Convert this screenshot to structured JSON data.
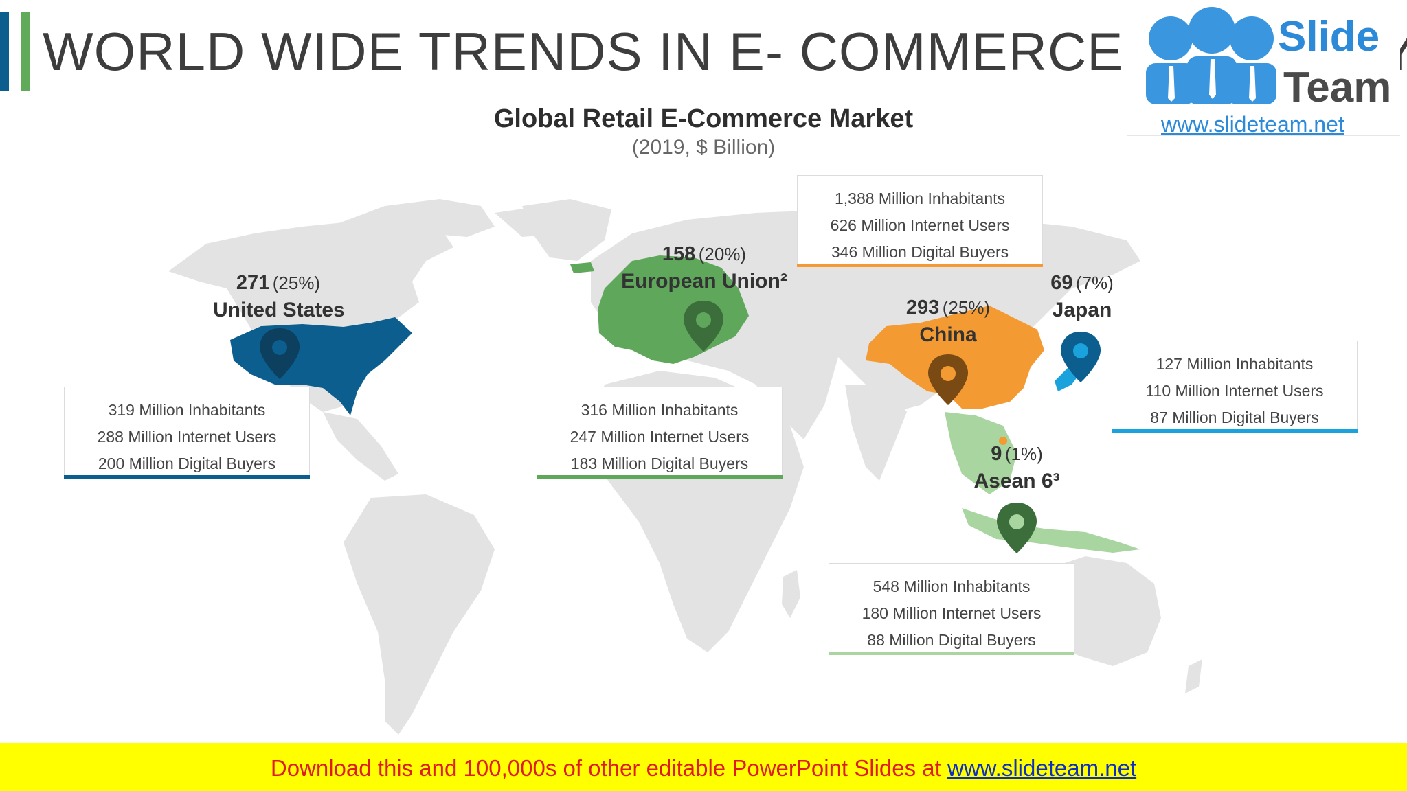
{
  "title": "WORLD WIDE TRENDS IN E- COMMERCE INDUSTRY",
  "logo": {
    "brand_line1": "Slide",
    "brand_line2": "Team",
    "url": "www.slideteam.net"
  },
  "chart": {
    "title": "Global Retail E-Commerce Market",
    "subtitle": "(2019, $ Billion)"
  },
  "colors": {
    "accent_blue": "#0b5e8d",
    "accent_green": "#5fab5a",
    "united_states": "#0b5e8d",
    "european_union": "#5fa85b",
    "china": "#f39b32",
    "japan": "#1aa2dc",
    "asean": "#a8d5a0",
    "land": "#e3e3e3",
    "footer_bg": "#ffff00",
    "footer_text": "#e01b1b",
    "footer_link": "#0e2fbf"
  },
  "regions": [
    {
      "id": "united_states",
      "value": "271",
      "share": "(25%)",
      "name": "United States",
      "stats": [
        "319 Million Inhabitants",
        "288 Million Internet Users",
        "200 Million Digital Buyers"
      ]
    },
    {
      "id": "european_union",
      "value": "158",
      "share": "(20%)",
      "name": "European Union²",
      "stats": [
        "316 Million Inhabitants",
        "247 Million Internet Users",
        "183 Million Digital Buyers"
      ]
    },
    {
      "id": "china",
      "value": "293",
      "share": "(25%)",
      "name": "China",
      "stats": [
        "1,388 Million Inhabitants",
        "626 Million Internet Users",
        "346 Million Digital Buyers"
      ]
    },
    {
      "id": "japan",
      "value": "69",
      "share": "(7%)",
      "name": "Japan",
      "stats": [
        "127 Million Inhabitants",
        "110 Million Internet Users",
        "87 Million Digital Buyers"
      ]
    },
    {
      "id": "asean",
      "value": "9",
      "share": "(1%)",
      "name": "Asean 6³",
      "stats": [
        "548 Million Inhabitants",
        "180 Million Internet Users",
        "88 Million Digital Buyers"
      ]
    }
  ],
  "footer": {
    "text": "Download this and 100,000s of other editable PowerPoint Slides at",
    "link": "www.slideteam.net"
  }
}
